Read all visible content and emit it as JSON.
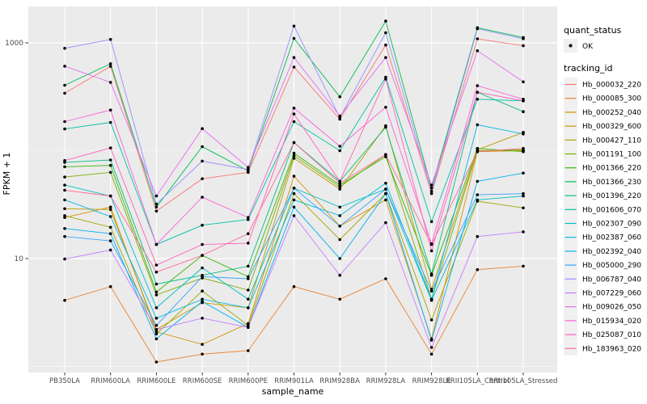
{
  "chart_data": {
    "type": "line",
    "title": "",
    "xlabel": "sample_name",
    "ylabel": "FPKM + 1",
    "y_scale": "log10",
    "grid": true,
    "legend_position": "right",
    "y_ticks": [
      {
        "value": 1000,
        "label": "1000"
      },
      {
        "value": 10,
        "label": "10"
      }
    ],
    "y_minor_ticks": [
      100,
      1
    ],
    "ylim": [
      0.88,
      2200
    ],
    "categories": [
      "PB350LA",
      "RRIM600LA",
      "RRIM600LE",
      "RRIM600SE",
      "RRIM600PE",
      "RRIM901LA",
      "RRIM928BA",
      "RRIM928LA",
      "RRIM928LE",
      "RRII105LA_Control",
      "RRII105LA_Stressed"
    ],
    "legend_quant": {
      "title": "quant_status",
      "items": [
        {
          "label": "OK",
          "symbol": "point"
        }
      ]
    },
    "legend_tracking": {
      "title": "tracking_id"
    },
    "series": [
      {
        "name": "Hb_000032_220",
        "color": "#F8766D",
        "values": [
          341,
          605,
          27.5,
          55,
          63,
          596,
          196,
          955,
          40,
          1090,
          940
        ]
      },
      {
        "name": "Hb_000085_300",
        "color": "#EA8331",
        "values": [
          4.1,
          5.5,
          1.1,
          1.3,
          1.4,
          5.5,
          4.2,
          6.5,
          1.3,
          7.9,
          8.5
        ]
      },
      {
        "name": "Hb_000252_040",
        "color": "#D89000",
        "values": [
          24,
          30,
          2.1,
          1.6,
          2.5,
          58,
          20,
          35,
          1.8,
          98,
          100
        ]
      },
      {
        "name": "Hb_000329_600",
        "color": "#C09B00",
        "values": [
          29,
          28.5,
          2.2,
          3.9,
          3.5,
          85,
          44,
          170,
          5.2,
          102,
          148
        ]
      },
      {
        "name": "Hb_000427_110",
        "color": "#A3A500",
        "values": [
          25,
          19.5,
          2.0,
          5.0,
          2.4,
          40,
          15,
          40,
          2.7,
          34,
          29.5
        ]
      },
      {
        "name": "Hb_001191_100",
        "color": "#7CAE00",
        "values": [
          57,
          63,
          4.6,
          6.6,
          5.1,
          90,
          46,
          92,
          4.2,
          100,
          102
        ]
      },
      {
        "name": "Hb_001366_220",
        "color": "#39B600",
        "values": [
          71,
          73,
          4.9,
          10.7,
          6.8,
          95,
          48,
          88,
          7.0,
          105,
          98
        ]
      },
      {
        "name": "Hb_001366_230",
        "color": "#00BB4E",
        "values": [
          404,
          640,
          30,
          109,
          65,
          1100,
          316,
          1590,
          45,
          1380,
          1120
        ]
      },
      {
        "name": "Hb_001396_220",
        "color": "#00BF7D",
        "values": [
          78,
          82,
          5.8,
          7.0,
          8.5,
          119,
          52,
          165,
          7.2,
          348,
          230
        ]
      },
      {
        "name": "Hb_001606_070",
        "color": "#00C1A3",
        "values": [
          159,
          183,
          13.5,
          20.4,
          23,
          186,
          100,
          480,
          22,
          300,
          290
        ]
      },
      {
        "name": "Hb_002307_090",
        "color": "#00BFC4",
        "values": [
          48,
          38,
          3.5,
          8.2,
          4.2,
          45,
          30,
          44,
          4.1,
          35,
          38
        ]
      },
      {
        "name": "Hb_002387_060",
        "color": "#00BAE0",
        "values": [
          35,
          24.5,
          2.8,
          4.2,
          3.5,
          35,
          25,
          50,
          4.2,
          174,
          143
        ]
      },
      {
        "name": "Hb_002392_040",
        "color": "#00B0F6",
        "values": [
          19,
          17,
          1.8,
          4.0,
          2.3,
          30,
          10,
          40,
          1.75,
          52,
          62
        ]
      },
      {
        "name": "Hb_005000_290",
        "color": "#35A2FF",
        "values": [
          16,
          14.6,
          2.4,
          6.8,
          6.5,
          45,
          20,
          44,
          5.0,
          39,
          40
        ]
      },
      {
        "name": "Hb_006787_040",
        "color": "#9590FF",
        "values": [
          890,
          1075,
          32,
          80,
          67,
          1430,
          203,
          1240,
          42,
          1350,
          1090
        ]
      },
      {
        "name": "Hb_007229_060",
        "color": "#C77CFF",
        "values": [
          9.9,
          12,
          2.2,
          2.8,
          2.3,
          25,
          7,
          21.5,
          1.5,
          16,
          17.7
        ]
      },
      {
        "name": "Hb_009026_050",
        "color": "#E76BF3",
        "values": [
          607,
          430,
          38,
          160,
          70,
          730,
          210,
          730,
          48,
          845,
          435
        ]
      },
      {
        "name": "Hb_015934_020",
        "color": "#FA62DB",
        "values": [
          186,
          238,
          13.5,
          37,
          24,
          248,
          110,
          253,
          13.7,
          400,
          300
        ]
      },
      {
        "name": "Hb_025087_010",
        "color": "#FF62BC",
        "values": [
          81,
          106,
          8.7,
          13.5,
          13.9,
          219,
          52,
          460,
          11.8,
          348,
          290
        ]
      },
      {
        "name": "Hb_183963_020",
        "color": "#FF6A98",
        "values": [
          43,
          38,
          7.5,
          10.7,
          17,
          119,
          50,
          92,
          13.5,
          98,
          105
        ]
      }
    ],
    "colors": {
      "panel_bg": "#EBEBEB",
      "grid": "#FFFFFF",
      "point": "#000000",
      "legend_key_bg": "#F0F0F0",
      "tick_text": "#4D4D4D",
      "title_text": "#000000",
      "tick_mark": "#333333"
    }
  }
}
